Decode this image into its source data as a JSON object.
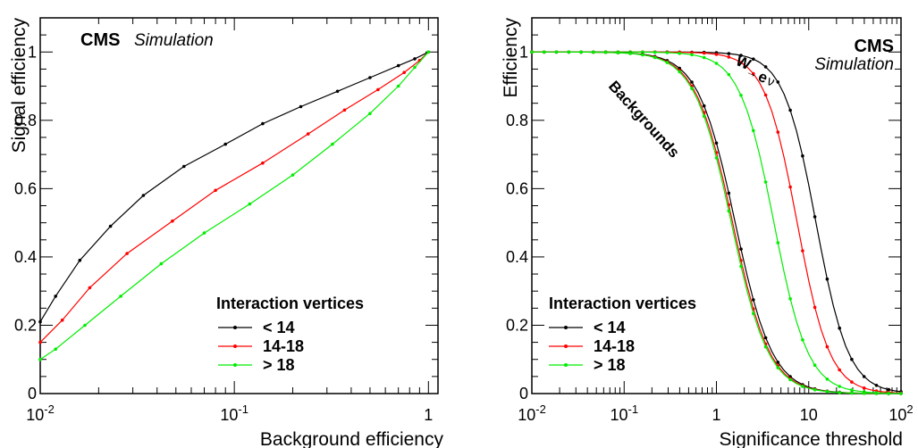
{
  "chart_data": [
    {
      "type": "line",
      "xscale": "log",
      "xlabel": "Background efficiency",
      "ylabel": "Signal efficiency",
      "xlim": [
        0.01,
        1.12
      ],
      "ylim": [
        0,
        1.1
      ],
      "x_ticks": [
        {
          "value": 0.01,
          "base": "10",
          "exp": "-2"
        },
        {
          "value": 0.1,
          "base": "10",
          "exp": "-1"
        },
        {
          "value": 1,
          "base": "1",
          "exp": ""
        }
      ],
      "y_ticks": [
        {
          "value": 0,
          "label": "0"
        },
        {
          "value": 0.2,
          "label": "0.2"
        },
        {
          "value": 0.4,
          "label": "0.4"
        },
        {
          "value": 0.6,
          "label": "0.6"
        },
        {
          "value": 0.8,
          "label": "0.8"
        },
        {
          "value": 1,
          "label": "1"
        }
      ],
      "cms_label": "CMS",
      "simulation_label": "Simulation",
      "legend_title": "Interaction vertices",
      "legend_position": "bottom-right",
      "grid": false,
      "series": [
        {
          "name": "< 14",
          "color": "#000000",
          "x": [
            0.01,
            0.012,
            0.016,
            0.023,
            0.034,
            0.055,
            0.09,
            0.14,
            0.22,
            0.34,
            0.5,
            0.7,
            0.85,
            1.0
          ],
          "y": [
            0.21,
            0.285,
            0.39,
            0.49,
            0.58,
            0.665,
            0.73,
            0.79,
            0.84,
            0.885,
            0.925,
            0.96,
            0.98,
            1.0
          ]
        },
        {
          "name": "14-18",
          "color": "#ff0000",
          "x": [
            0.01,
            0.013,
            0.018,
            0.028,
            0.048,
            0.08,
            0.14,
            0.24,
            0.37,
            0.55,
            0.75,
            0.9,
            1.0
          ],
          "y": [
            0.15,
            0.215,
            0.31,
            0.41,
            0.505,
            0.595,
            0.675,
            0.76,
            0.83,
            0.89,
            0.94,
            0.975,
            1.0
          ]
        },
        {
          "name": "> 18",
          "color": "#00ee00",
          "x": [
            0.01,
            0.012,
            0.017,
            0.026,
            0.042,
            0.07,
            0.12,
            0.2,
            0.32,
            0.5,
            0.7,
            0.85,
            1.0
          ],
          "y": [
            0.1,
            0.13,
            0.2,
            0.285,
            0.38,
            0.47,
            0.555,
            0.64,
            0.73,
            0.82,
            0.9,
            0.955,
            1.0
          ]
        }
      ]
    },
    {
      "type": "line",
      "xscale": "log",
      "xlabel": "Significance threshold",
      "ylabel": "Efficiency",
      "xlim": [
        0.01,
        100
      ],
      "ylim": [
        0,
        1.1
      ],
      "x_ticks": [
        {
          "value": 0.01,
          "base": "10",
          "exp": "-2"
        },
        {
          "value": 0.1,
          "base": "10",
          "exp": "-1"
        },
        {
          "value": 1,
          "base": "1",
          "exp": ""
        },
        {
          "value": 10,
          "base": "10",
          "exp": ""
        },
        {
          "value": 100,
          "base": "10",
          "exp": "2"
        }
      ],
      "y_ticks": [
        {
          "value": 0,
          "label": "0"
        },
        {
          "value": 0.2,
          "label": "0.2"
        },
        {
          "value": 0.4,
          "label": "0.4"
        },
        {
          "value": 0.6,
          "label": "0.6"
        },
        {
          "value": 0.8,
          "label": "0.8"
        },
        {
          "value": 1,
          "label": "1"
        }
      ],
      "cms_label": "CMS",
      "simulation_label": "Simulation",
      "annotations": {
        "signal_w": "W",
        "signal_arrow": "→",
        "signal_e": "e",
        "signal_nu": "ν",
        "backgrounds": "Backgrounds"
      },
      "legend_title": "Interaction vertices",
      "legend_position": "bottom-left",
      "grid": false,
      "curves": {
        "signal": [
          {
            "name": "< 14",
            "color": "#000000",
            "x50": 12,
            "width": 0.42
          },
          {
            "name": "14-18",
            "color": "#ff0000",
            "x50": 7.5,
            "width": 0.42
          },
          {
            "name": "> 18",
            "color": "#00ee00",
            "x50": 4.2,
            "width": 0.44
          }
        ],
        "background": [
          {
            "name": "< 14",
            "color": "#000000",
            "x50": 1.6,
            "width": 0.48
          },
          {
            "name": "14-18",
            "color": "#ff0000",
            "x50": 1.5,
            "width": 0.48
          },
          {
            "name": "> 18",
            "color": "#00ee00",
            "x50": 1.45,
            "width": 0.48
          }
        ]
      },
      "series": [
        {
          "name": "< 14",
          "color": "#000000"
        },
        {
          "name": "14-18",
          "color": "#ff0000"
        },
        {
          "name": "> 18",
          "color": "#00ee00"
        }
      ]
    }
  ]
}
